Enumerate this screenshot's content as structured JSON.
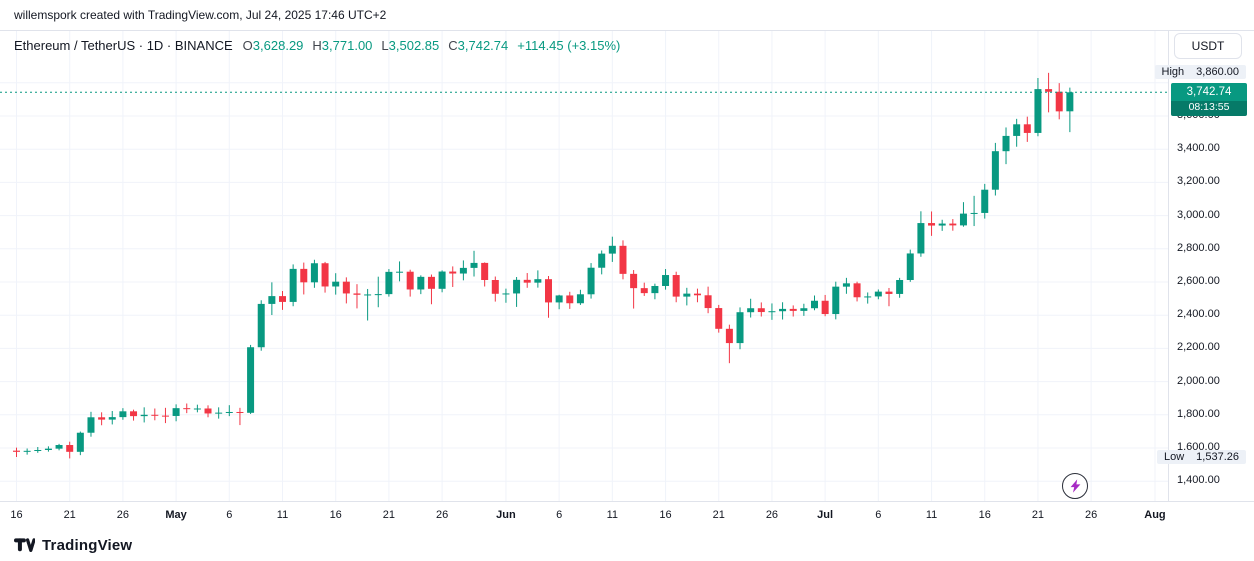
{
  "attribution": "willemspork created with TradingView.com, Jul 24, 2025 17:46 UTC+2",
  "header": {
    "symbol_title": "Ethereum / TetherUS · 1D · BINANCE",
    "ohlc": {
      "o_label": "O",
      "o": "3,628.29",
      "h_label": "H",
      "h": "3,771.00",
      "l_label": "L",
      "l": "3,502.85",
      "c_label": "C",
      "c": "3,742.74",
      "change": "+114.45 (+3.15%)"
    },
    "currency_button": "USDT"
  },
  "price_axis": {
    "high_label": "High",
    "high_value": "3,860.00",
    "last_price": "3,742.74",
    "countdown": "08:13:55",
    "low_label": "Low",
    "low_value": "1,537.26",
    "tick_labels": [
      "3,600.00",
      "3,400.00",
      "3,200.00",
      "3,000.00",
      "2,800.00",
      "2,600.00",
      "2,400.00",
      "2,200.00",
      "2,000.00",
      "1,800.00",
      "1,600.00",
      "1,400.00"
    ]
  },
  "time_axis": {
    "ticks": [
      {
        "label": "16",
        "i": 0
      },
      {
        "label": "21",
        "i": 5
      },
      {
        "label": "26",
        "i": 10
      },
      {
        "label": "May",
        "i": 15,
        "major": true
      },
      {
        "label": "6",
        "i": 20
      },
      {
        "label": "11",
        "i": 25
      },
      {
        "label": "16",
        "i": 30
      },
      {
        "label": "21",
        "i": 35
      },
      {
        "label": "26",
        "i": 40
      },
      {
        "label": "Jun",
        "i": 46,
        "major": true
      },
      {
        "label": "6",
        "i": 51
      },
      {
        "label": "11",
        "i": 56
      },
      {
        "label": "16",
        "i": 61
      },
      {
        "label": "21",
        "i": 66
      },
      {
        "label": "26",
        "i": 71
      },
      {
        "label": "Jul",
        "i": 76,
        "major": true
      },
      {
        "label": "6",
        "i": 81
      },
      {
        "label": "11",
        "i": 86
      },
      {
        "label": "16",
        "i": 91
      },
      {
        "label": "21",
        "i": 96
      },
      {
        "label": "26",
        "i": 101
      },
      {
        "label": "Aug",
        "i": 107,
        "major": true
      }
    ]
  },
  "footer": {
    "brand": "TradingView"
  },
  "colors": {
    "up": "#089981",
    "down": "#F23645",
    "grid": "#F0F3FA",
    "axis_text": "#131722",
    "label_bg": "#EDF1F7",
    "badge_green": "#089981",
    "countdown_bg": "#067a68",
    "bolt": "#A72BC4"
  },
  "chart_data": {
    "type": "candlestick",
    "title": "Ethereum / TetherUS · 1D · BINANCE",
    "symbol": "ETHUSDT",
    "exchange": "BINANCE",
    "interval": "1D",
    "grid": true,
    "high": 3860.0,
    "low": 1537.26,
    "last": 3742.74,
    "ylim": [
      1281,
      4112
    ],
    "price_ticks": [
      1400,
      1600,
      1800,
      2000,
      2200,
      2400,
      2600,
      2800,
      3000,
      3200,
      3400,
      3600,
      3800
    ],
    "candles": [
      [
        "2025-04-16",
        1584,
        1602,
        1546,
        1577
      ],
      [
        "2025-04-17",
        1577,
        1597,
        1560,
        1583
      ],
      [
        "2025-04-18",
        1583,
        1606,
        1571,
        1588
      ],
      [
        "2025-04-19",
        1588,
        1610,
        1578,
        1596
      ],
      [
        "2025-04-20",
        1596,
        1625,
        1586,
        1618
      ],
      [
        "2025-04-21",
        1618,
        1638,
        1537.26,
        1577
      ],
      [
        "2025-04-22",
        1577,
        1699,
        1557,
        1692
      ],
      [
        "2025-04-23",
        1692,
        1818,
        1668,
        1785
      ],
      [
        "2025-04-24",
        1785,
        1815,
        1737,
        1771
      ],
      [
        "2025-04-25",
        1771,
        1823,
        1742,
        1786
      ],
      [
        "2025-04-26",
        1786,
        1840,
        1770,
        1821
      ],
      [
        "2025-04-27",
        1821,
        1831,
        1765,
        1792
      ],
      [
        "2025-04-28",
        1792,
        1845,
        1754,
        1800
      ],
      [
        "2025-04-29",
        1800,
        1838,
        1767,
        1795
      ],
      [
        "2025-04-30",
        1795,
        1842,
        1750,
        1793
      ],
      [
        "2025-05-01",
        1793,
        1863,
        1761,
        1840
      ],
      [
        "2025-05-02",
        1840,
        1868,
        1810,
        1835
      ],
      [
        "2025-05-03",
        1835,
        1861,
        1815,
        1838
      ],
      [
        "2025-05-04",
        1838,
        1857,
        1785,
        1808
      ],
      [
        "2025-05-05",
        1808,
        1845,
        1777,
        1813
      ],
      [
        "2025-05-06",
        1813,
        1858,
        1792,
        1817
      ],
      [
        "2025-05-07",
        1817,
        1842,
        1738,
        1812
      ],
      [
        "2025-05-08",
        1812,
        2221,
        1805,
        2207
      ],
      [
        "2025-05-09",
        2207,
        2490,
        2186,
        2468
      ],
      [
        "2025-05-10",
        2468,
        2598,
        2401,
        2515
      ],
      [
        "2025-05-11",
        2515,
        2546,
        2432,
        2480
      ],
      [
        "2025-05-12",
        2480,
        2706,
        2454,
        2679
      ],
      [
        "2025-05-13",
        2679,
        2717,
        2525,
        2598
      ],
      [
        "2025-05-14",
        2598,
        2734,
        2565,
        2713
      ],
      [
        "2025-05-15",
        2713,
        2721,
        2536,
        2573
      ],
      [
        "2025-05-16",
        2573,
        2653,
        2524,
        2602
      ],
      [
        "2025-05-17",
        2602,
        2628,
        2471,
        2531
      ],
      [
        "2025-05-18",
        2531,
        2587,
        2441,
        2523
      ],
      [
        "2025-05-19",
        2523,
        2558,
        2368,
        2525
      ],
      [
        "2025-05-20",
        2525,
        2632,
        2448,
        2527
      ],
      [
        "2025-05-21",
        2527,
        2678,
        2512,
        2661
      ],
      [
        "2025-05-22",
        2661,
        2724,
        2604,
        2662
      ],
      [
        "2025-05-23",
        2662,
        2674,
        2512,
        2555
      ],
      [
        "2025-05-24",
        2555,
        2640,
        2527,
        2631
      ],
      [
        "2025-05-25",
        2631,
        2645,
        2466,
        2559
      ],
      [
        "2025-05-26",
        2559,
        2670,
        2538,
        2663
      ],
      [
        "2025-05-27",
        2663,
        2694,
        2570,
        2651
      ],
      [
        "2025-05-28",
        2651,
        2730,
        2610,
        2685
      ],
      [
        "2025-05-29",
        2685,
        2788,
        2633,
        2715
      ],
      [
        "2025-05-30",
        2715,
        2718,
        2573,
        2612
      ],
      [
        "2025-05-31",
        2612,
        2633,
        2482,
        2529
      ],
      [
        "2025-06-01",
        2529,
        2560,
        2475,
        2531
      ],
      [
        "2025-06-02",
        2531,
        2630,
        2450,
        2613
      ],
      [
        "2025-06-03",
        2613,
        2654,
        2565,
        2596
      ],
      [
        "2025-06-04",
        2596,
        2670,
        2566,
        2617
      ],
      [
        "2025-06-05",
        2617,
        2636,
        2385,
        2477
      ],
      [
        "2025-06-06",
        2477,
        2523,
        2436,
        2519
      ],
      [
        "2025-06-07",
        2519,
        2541,
        2438,
        2472
      ],
      [
        "2025-06-08",
        2472,
        2553,
        2462,
        2526
      ],
      [
        "2025-06-09",
        2526,
        2714,
        2500,
        2686
      ],
      [
        "2025-06-10",
        2686,
        2790,
        2646,
        2771
      ],
      [
        "2025-06-11",
        2771,
        2873,
        2721,
        2818
      ],
      [
        "2025-06-12",
        2818,
        2851,
        2616,
        2649
      ],
      [
        "2025-06-13",
        2649,
        2672,
        2440,
        2563
      ],
      [
        "2025-06-14",
        2563,
        2596,
        2516,
        2533
      ],
      [
        "2025-06-15",
        2533,
        2590,
        2496,
        2576
      ],
      [
        "2025-06-16",
        2576,
        2678,
        2554,
        2642
      ],
      [
        "2025-06-17",
        2642,
        2662,
        2478,
        2512
      ],
      [
        "2025-06-18",
        2512,
        2565,
        2459,
        2530
      ],
      [
        "2025-06-19",
        2530,
        2560,
        2478,
        2520
      ],
      [
        "2025-06-20",
        2520,
        2572,
        2412,
        2443
      ],
      [
        "2025-06-21",
        2443,
        2462,
        2295,
        2318
      ],
      [
        "2025-06-22",
        2318,
        2343,
        2111,
        2232
      ],
      [
        "2025-06-23",
        2232,
        2447,
        2195,
        2418
      ],
      [
        "2025-06-24",
        2418,
        2499,
        2386,
        2442
      ],
      [
        "2025-06-25",
        2442,
        2477,
        2392,
        2419
      ],
      [
        "2025-06-26",
        2419,
        2471,
        2372,
        2424
      ],
      [
        "2025-06-27",
        2424,
        2478,
        2374,
        2438
      ],
      [
        "2025-06-28",
        2438,
        2459,
        2392,
        2426
      ],
      [
        "2025-06-29",
        2426,
        2469,
        2396,
        2442
      ],
      [
        "2025-06-30",
        2442,
        2519,
        2430,
        2487
      ],
      [
        "2025-07-01",
        2487,
        2522,
        2394,
        2407
      ],
      [
        "2025-07-02",
        2407,
        2602,
        2375,
        2572
      ],
      [
        "2025-07-03",
        2572,
        2625,
        2529,
        2592
      ],
      [
        "2025-07-04",
        2592,
        2602,
        2483,
        2508
      ],
      [
        "2025-07-05",
        2508,
        2537,
        2470,
        2513
      ],
      [
        "2025-07-06",
        2513,
        2555,
        2496,
        2542
      ],
      [
        "2025-07-07",
        2542,
        2564,
        2454,
        2528
      ],
      [
        "2025-07-08",
        2528,
        2625,
        2505,
        2612
      ],
      [
        "2025-07-09",
        2612,
        2795,
        2601,
        2772
      ],
      [
        "2025-07-10",
        2772,
        3026,
        2752,
        2955
      ],
      [
        "2025-07-11",
        2955,
        3025,
        2878,
        2940
      ],
      [
        "2025-07-12",
        2940,
        2975,
        2908,
        2952
      ],
      [
        "2025-07-13",
        2952,
        2979,
        2909,
        2941
      ],
      [
        "2025-07-14",
        2941,
        3081,
        2933,
        3012
      ],
      [
        "2025-07-15",
        3012,
        3119,
        2937,
        3016
      ],
      [
        "2025-07-16",
        3016,
        3191,
        2982,
        3156
      ],
      [
        "2025-07-17",
        3156,
        3438,
        3121,
        3388
      ],
      [
        "2025-07-18",
        3388,
        3531,
        3310,
        3480
      ],
      [
        "2025-07-19",
        3480,
        3583,
        3415,
        3550
      ],
      [
        "2025-07-20",
        3550,
        3596,
        3444,
        3498
      ],
      [
        "2025-07-21",
        3498,
        3829,
        3478,
        3762
      ],
      [
        "2025-07-22",
        3762,
        3860,
        3622,
        3746
      ],
      [
        "2025-07-23",
        3746,
        3798,
        3580,
        3628
      ],
      [
        "2025-07-24",
        3628.29,
        3771,
        3502.85,
        3742.74
      ]
    ]
  }
}
